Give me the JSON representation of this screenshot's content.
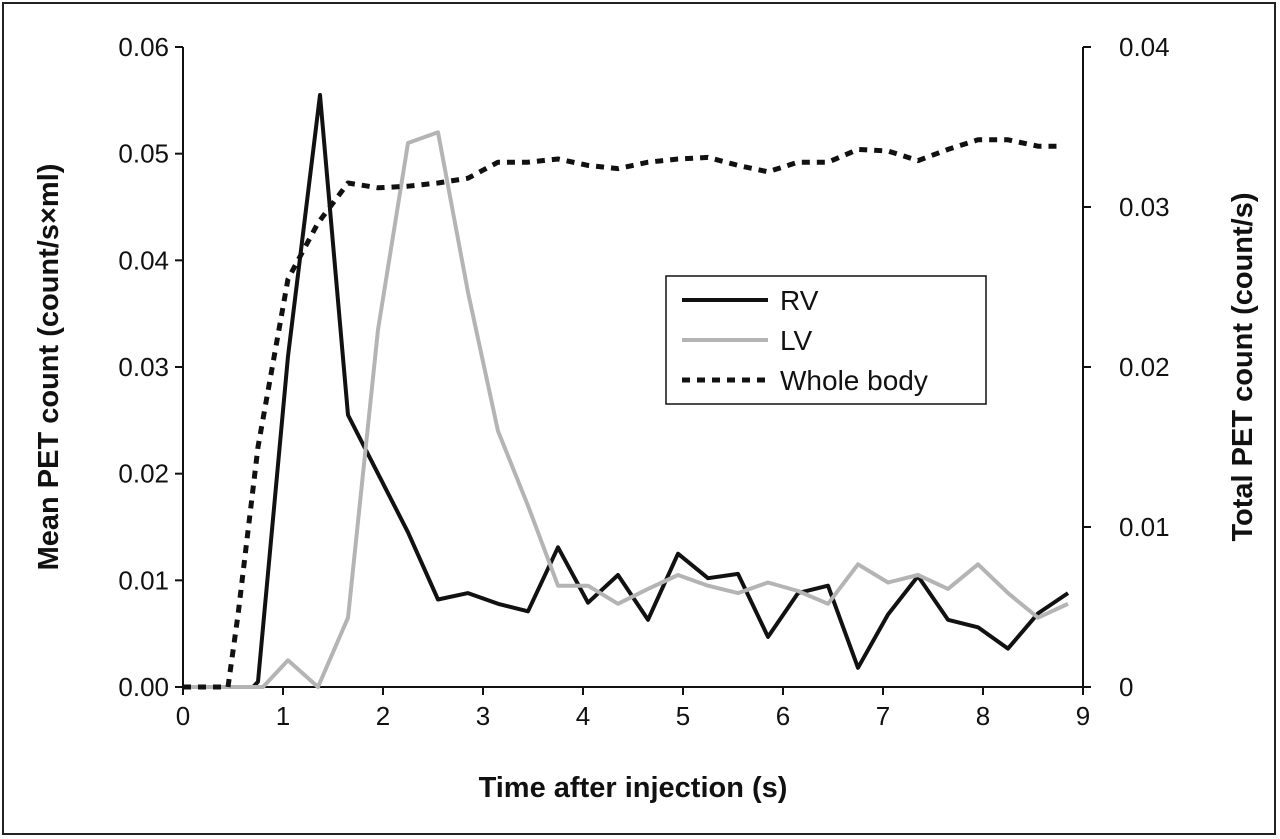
{
  "chart_data": {
    "type": "line",
    "xlabel": "Time after injection (s)",
    "ylabel_left": "Mean PET count (count/s×ml)",
    "ylabel_right": "Total PET count (count/s)",
    "xlim": [
      0,
      9
    ],
    "ylim_left": [
      0,
      0.06
    ],
    "ylim_right": [
      0,
      0.04
    ],
    "x_ticks": [
      "0",
      "1",
      "2",
      "3",
      "4",
      "5",
      "6",
      "7",
      "8",
      "9"
    ],
    "y_ticks_left": [
      "0.00",
      "0.01",
      "0.02",
      "0.03",
      "0.04",
      "0.05",
      "0.06"
    ],
    "y_ticks_right": [
      "0",
      "0.01",
      "0.02",
      "0.03",
      "0.04"
    ],
    "grid": false,
    "legend_position": "center-right",
    "series": [
      {
        "name": "RV",
        "axis": "left",
        "style": "solid",
        "color": "#111111",
        "x": [
          0.0,
          0.7,
          0.75,
          1.05,
          1.37,
          1.65,
          1.95,
          2.25,
          2.55,
          2.85,
          3.15,
          3.45,
          3.75,
          4.05,
          4.35,
          4.65,
          4.95,
          5.25,
          5.55,
          5.85,
          6.15,
          6.45,
          6.75,
          7.05,
          7.35,
          7.65,
          7.95,
          8.25,
          8.55,
          8.85
        ],
        "values": [
          0.0,
          0.0,
          0.0005,
          0.031,
          0.0555,
          0.0255,
          0.02,
          0.0145,
          0.0082,
          0.0088,
          0.0078,
          0.0071,
          0.0131,
          0.0079,
          0.0105,
          0.0063,
          0.0125,
          0.0102,
          0.0106,
          0.0047,
          0.0088,
          0.0095,
          0.0018,
          0.0068,
          0.0104,
          0.0063,
          0.0056,
          0.0036,
          0.0069,
          0.0088
        ]
      },
      {
        "name": "LV",
        "axis": "left",
        "style": "solid",
        "color": "#b4b4b4",
        "x": [
          0.0,
          0.7,
          0.8,
          1.05,
          1.35,
          1.65,
          1.95,
          2.25,
          2.55,
          2.85,
          3.15,
          3.45,
          3.75,
          4.05,
          4.35,
          4.65,
          4.95,
          5.25,
          5.55,
          5.85,
          6.15,
          6.45,
          6.75,
          7.05,
          7.35,
          7.65,
          7.95,
          8.25,
          8.55,
          8.85
        ],
        "values": [
          0.0,
          0.0,
          0.0,
          0.0025,
          0.0,
          0.0065,
          0.0335,
          0.051,
          0.052,
          0.037,
          0.024,
          0.017,
          0.0095,
          0.0095,
          0.0078,
          0.0092,
          0.0105,
          0.0095,
          0.0088,
          0.0098,
          0.009,
          0.0078,
          0.0115,
          0.0098,
          0.0105,
          0.0092,
          0.0115,
          0.0088,
          0.0065,
          0.0078
        ]
      },
      {
        "name": "Whole body",
        "axis": "right",
        "style": "dashed",
        "color": "#111111",
        "x": [
          0.0,
          0.45,
          0.55,
          0.75,
          1.05,
          1.35,
          1.65,
          1.95,
          2.25,
          2.55,
          2.85,
          3.15,
          3.45,
          3.75,
          4.05,
          4.35,
          4.65,
          4.95,
          5.25,
          5.55,
          5.85,
          6.15,
          6.45,
          6.75,
          7.05,
          7.35,
          7.65,
          7.95,
          8.25,
          8.55,
          8.75
        ],
        "values": [
          0.0,
          0.0,
          0.0045,
          0.015,
          0.0255,
          0.029,
          0.0315,
          0.0312,
          0.0313,
          0.0315,
          0.0318,
          0.0328,
          0.0328,
          0.033,
          0.0326,
          0.0324,
          0.0328,
          0.033,
          0.0331,
          0.0326,
          0.0322,
          0.0328,
          0.0328,
          0.0336,
          0.0335,
          0.0329,
          0.0336,
          0.0342,
          0.0342,
          0.0338,
          0.0338
        ]
      }
    ]
  }
}
